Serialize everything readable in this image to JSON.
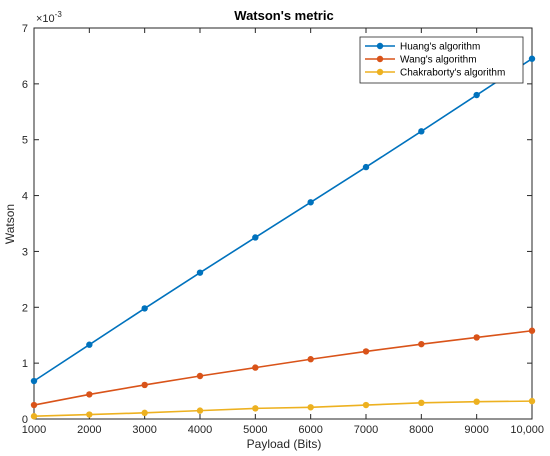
{
  "chart_data": {
    "type": "line",
    "title": "Watson's metric",
    "xlabel": "Payload (Bits)",
    "ylabel": "Watson",
    "y_exponent_label": "×10",
    "y_exponent_power": "-3",
    "xlim": [
      1000,
      10000
    ],
    "ylim": [
      0,
      7
    ],
    "x": [
      1000,
      2000,
      3000,
      4000,
      5000,
      6000,
      7000,
      8000,
      9000,
      10000
    ],
    "x_tick_labels": [
      "1000",
      "2000",
      "3000",
      "4000",
      "5000",
      "6000",
      "7000",
      "8000",
      "9000",
      "10,000"
    ],
    "y_ticks": [
      0,
      1,
      2,
      3,
      4,
      5,
      6,
      7
    ],
    "y_tick_labels": [
      "0",
      "1",
      "2",
      "3",
      "4",
      "5",
      "6",
      "7"
    ],
    "grid": false,
    "legend_position": "top-right",
    "series": [
      {
        "name": "Huang's algorithm",
        "color": "#0072BD",
        "values": [
          0.68,
          1.33,
          1.98,
          2.62,
          3.25,
          3.88,
          4.51,
          5.15,
          5.8,
          6.45
        ]
      },
      {
        "name": "Wang's algorithm",
        "color": "#D95319",
        "values": [
          0.25,
          0.44,
          0.61,
          0.77,
          0.92,
          1.07,
          1.21,
          1.34,
          1.46,
          1.58
        ]
      },
      {
        "name": "Chakraborty's algorithm",
        "color": "#EDB120",
        "values": [
          0.05,
          0.08,
          0.11,
          0.15,
          0.19,
          0.21,
          0.25,
          0.29,
          0.31,
          0.32
        ]
      }
    ]
  }
}
